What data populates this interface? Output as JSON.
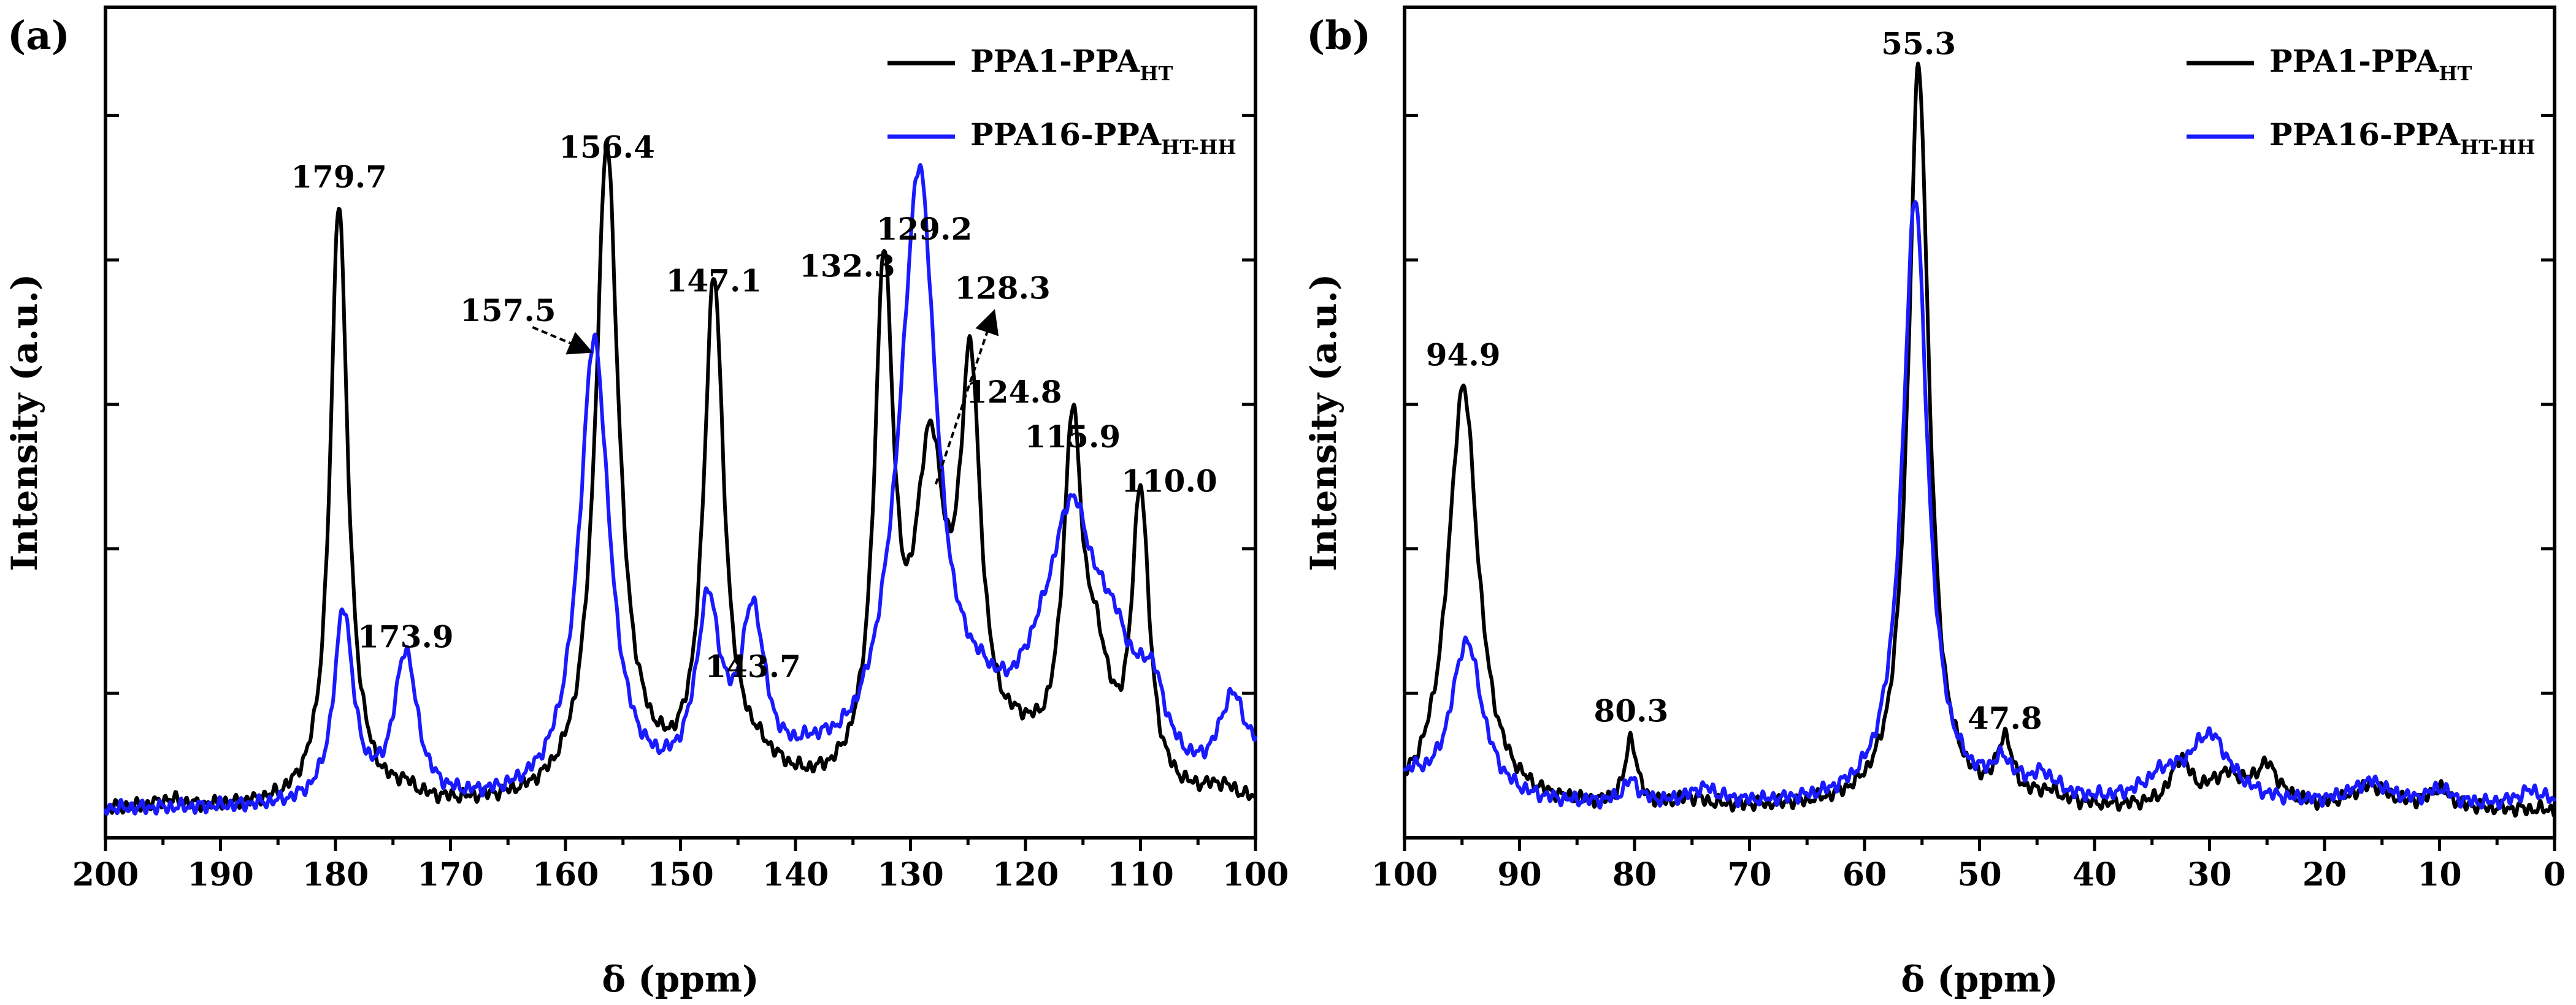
{
  "chart_data": [
    {
      "panel_label": "(a)",
      "type": "line",
      "xlabel": "δ (ppm)",
      "ylabel": "Intensity (a.u.)",
      "xlim": [
        200,
        100
      ],
      "ylim": [
        0,
        100
      ],
      "xticks": [
        200,
        190,
        180,
        170,
        160,
        150,
        140,
        130,
        120,
        110,
        100
      ],
      "legend": [
        {
          "main": "PPA1-PPA",
          "sub": "HT",
          "color": "#000000"
        },
        {
          "main": "PPA16-PPA",
          "sub": "HT-HH",
          "color": "#1a1aff"
        }
      ],
      "series": [
        {
          "name": "PPA1-PPA HT",
          "color": "#000000",
          "baseline": 2,
          "peaks": [
            [
              194.5,
              1,
              1.5
            ],
            [
              179.7,
              81,
              0.9
            ],
            [
              178.0,
              2,
              1.2
            ],
            [
              174.0,
              1.5,
              1.2
            ],
            [
              156.4,
              85,
              1.2
            ],
            [
              155.0,
              4,
              3
            ],
            [
              147.1,
              68,
              1.05
            ],
            [
              143.5,
              4,
              3
            ],
            [
              132.3,
              68,
              1.0
            ],
            [
              128.3,
              42,
              1.6
            ],
            [
              124.8,
              52,
              1.1
            ],
            [
              120.5,
              5,
              3
            ],
            [
              115.9,
              46,
              1.0
            ],
            [
              113.8,
              14,
              1.4
            ],
            [
              110.0,
              40,
              0.9
            ],
            [
              103.0,
              2,
              2
            ]
          ]
        },
        {
          "name": "PPA16-PPA HT-HH",
          "color": "#1a1aff",
          "baseline": 2,
          "peaks": [
            [
              179.3,
              26,
              1.0
            ],
            [
              173.9,
              20,
              1.2
            ],
            [
              157.5,
              62,
              1.6
            ],
            [
              147.6,
              24,
              1.3
            ],
            [
              143.7,
              22,
              1.3
            ],
            [
              138.5,
              3,
              3
            ],
            [
              130.5,
              15,
              3.0
            ],
            [
              129.2,
              70,
              1.8
            ],
            [
              124.0,
              6,
              3
            ],
            [
              115.9,
              28,
              2.2
            ],
            [
              118.5,
              10,
              3.0
            ],
            [
              112.5,
              15,
              2.5
            ],
            [
              109.0,
              10,
              1.5
            ],
            [
              102.0,
              12,
              1.5
            ],
            [
              99.0,
              5,
              1.5
            ]
          ]
        }
      ],
      "annotations": [
        {
          "text": "179.7",
          "x": 179.7,
          "y": 86
        },
        {
          "text": "173.9",
          "x": 173.9,
          "y": 24
        },
        {
          "text": "156.4",
          "x": 156.4,
          "y": 90
        },
        {
          "text": "157.5",
          "x": 165.0,
          "y": 68,
          "arrow_to": [
            158.0,
            64
          ]
        },
        {
          "text": "147.1",
          "x": 147.1,
          "y": 72
        },
        {
          "text": "143.7",
          "x": 143.7,
          "y": 20
        },
        {
          "text": "132.3",
          "x": 135.5,
          "y": 74
        },
        {
          "text": "129.2",
          "x": 128.8,
          "y": 79
        },
        {
          "text": "128.3",
          "x": 122.0,
          "y": 71,
          "arrow_from": [
            127.8,
            46
          ],
          "arrow_to": [
            122.8,
            69
          ]
        },
        {
          "text": "124.8",
          "x": 121.0,
          "y": 57
        },
        {
          "text": "115.9",
          "x": 115.9,
          "y": 51
        },
        {
          "text": "110.0",
          "x": 107.5,
          "y": 45
        }
      ]
    },
    {
      "panel_label": "(b)",
      "type": "line",
      "xlabel": "δ (ppm)",
      "ylabel": "Intensity (a.u.)",
      "xlim": [
        100,
        0
      ],
      "ylim": [
        0,
        100
      ],
      "xticks": [
        100,
        90,
        80,
        70,
        60,
        50,
        40,
        30,
        20,
        10,
        0
      ],
      "legend": [
        {
          "main": "PPA1-PPA",
          "sub": "HT",
          "color": "#000000"
        },
        {
          "main": "PPA16-PPA",
          "sub": "HT-HH",
          "color": "#1a1aff"
        }
      ],
      "series": [
        {
          "name": "PPA1-PPA HT",
          "color": "#000000",
          "baseline": 2,
          "peaks": [
            [
              94.9,
              57,
              1.6
            ],
            [
              80.3,
              9,
              0.6
            ],
            [
              75.0,
              1,
              1.5
            ],
            [
              55.3,
              100,
              1.1
            ],
            [
              47.8,
              8,
              0.8
            ],
            [
              44.0,
              1.5,
              1.5
            ],
            [
              32.5,
              6,
              1.0
            ],
            [
              28.5,
              4,
              2.0
            ],
            [
              25.0,
              5,
              1.3
            ],
            [
              16.0,
              3,
              2.0
            ],
            [
              10.0,
              2.5,
              1.2
            ]
          ]
        },
        {
          "name": "PPA16-PPA HT-HH",
          "color": "#1a1aff",
          "baseline": 2.5,
          "peaks": [
            [
              99.5,
              3,
              1.5
            ],
            [
              94.6,
              22,
              1.7
            ],
            [
              80.3,
              3,
              0.8
            ],
            [
              74.0,
              2,
              1.5
            ],
            [
              55.6,
              82,
              1.3
            ],
            [
              48.0,
              4,
              1.2
            ],
            [
              44.5,
              3,
              1.5
            ],
            [
              30.0,
              9,
              2.2
            ],
            [
              34.0,
              3,
              2.0
            ],
            [
              16.0,
              3,
              2.0
            ],
            [
              10.0,
              2,
              1.2
            ],
            [
              2.0,
              2,
              1.5
            ]
          ]
        }
      ],
      "annotations": [
        {
          "text": "94.9",
          "x": 94.9,
          "y": 62
        },
        {
          "text": "80.3",
          "x": 80.3,
          "y": 14
        },
        {
          "text": "55.3",
          "x": 55.3,
          "y": 104
        },
        {
          "text": "47.8",
          "x": 47.8,
          "y": 13
        }
      ]
    }
  ]
}
